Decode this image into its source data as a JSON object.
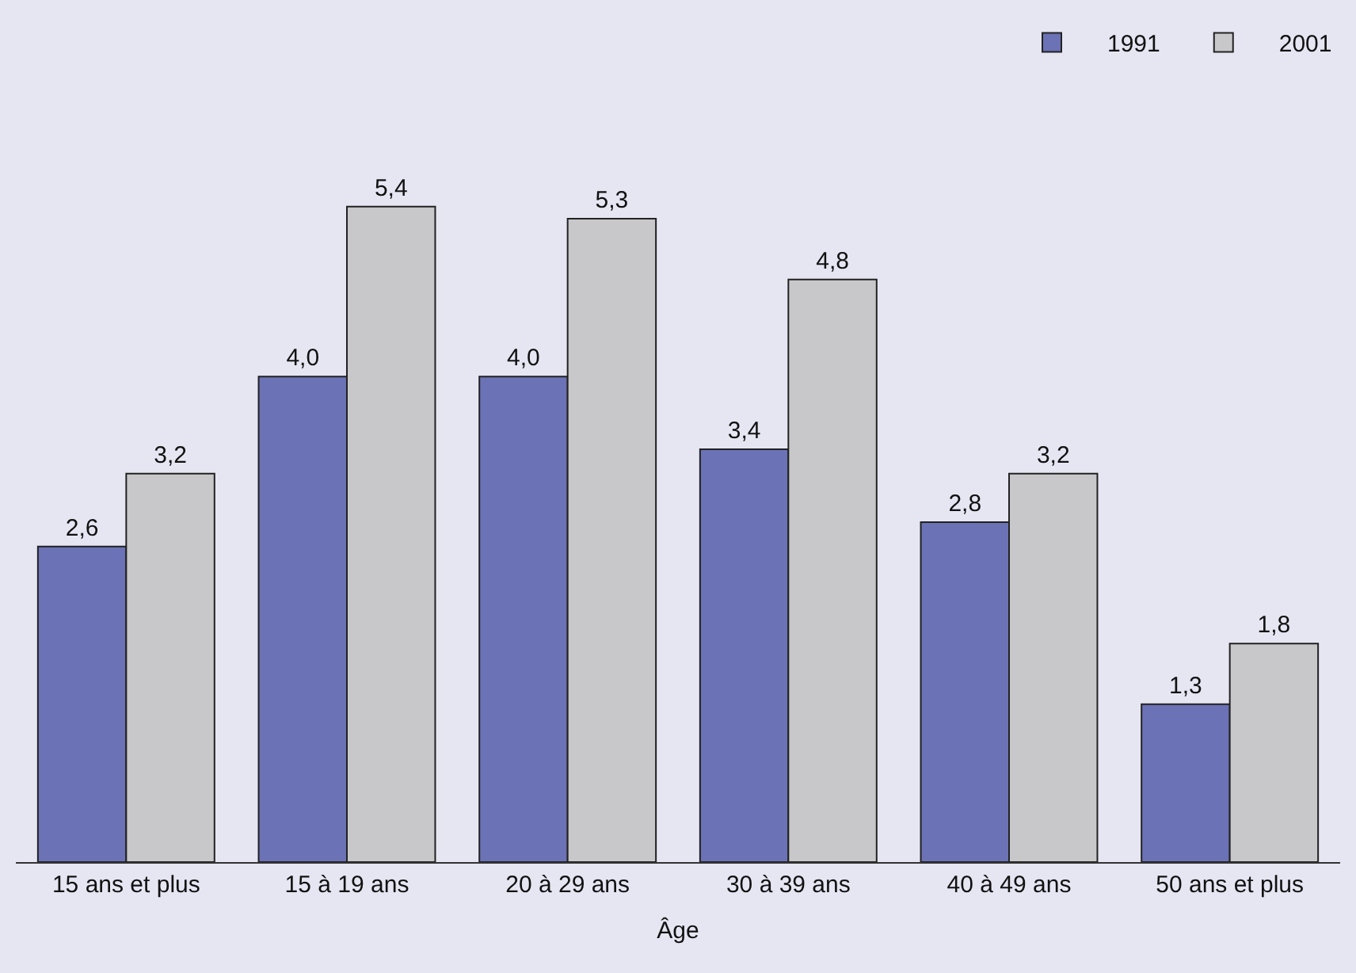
{
  "chart_data": {
    "type": "bar",
    "xlabel": "Âge",
    "categories": [
      "15 ans et plus",
      "15 à 19 ans",
      "20 à 29 ans",
      "30 à 39 ans",
      "40 à 49 ans",
      "50 ans et plus"
    ],
    "series": [
      {
        "name": "1991",
        "color": "#6b72b5",
        "values": [
          2.6,
          4.0,
          4.0,
          3.4,
          2.8,
          1.3
        ],
        "value_labels": [
          "2,6",
          "4,0",
          "4,0",
          "3,4",
          "2,8",
          "1,3"
        ]
      },
      {
        "name": "2001",
        "color": "#c8c8ca",
        "values": [
          3.2,
          5.4,
          5.3,
          4.8,
          3.2,
          1.8
        ],
        "value_labels": [
          "3,2",
          "5,4",
          "5,3",
          "4,8",
          "3,2",
          "1,8"
        ]
      }
    ],
    "legend": "top right",
    "grid": false
  }
}
